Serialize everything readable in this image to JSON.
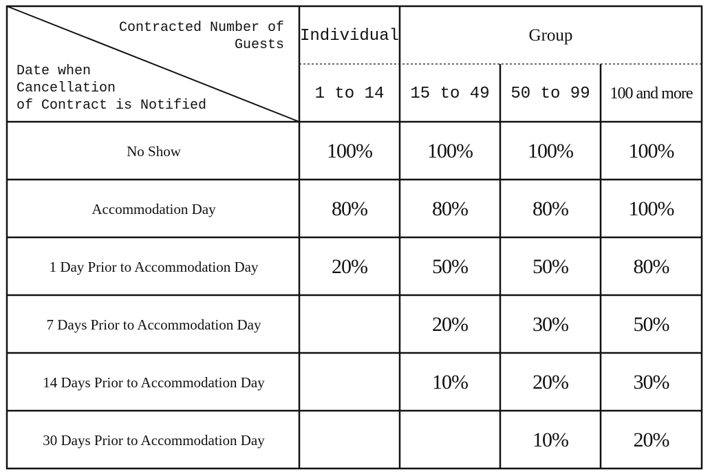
{
  "corner": {
    "column_heading_line1": "Contracted Number of",
    "column_heading_line2": "Guests",
    "row_heading_line1": "Date when",
    "row_heading_line2": "Cancellation",
    "row_heading_line3": "of Contract is Notified"
  },
  "headers": {
    "individual": "Individual",
    "group": "Group",
    "ranges": [
      "1 to 14",
      "15 to 49",
      "50 to 99",
      "100 and more"
    ]
  },
  "rows": [
    {
      "label": "No Show",
      "values": [
        "100%",
        "100%",
        "100%",
        "100%"
      ]
    },
    {
      "label": "Accommodation Day",
      "values": [
        "80%",
        "80%",
        "80%",
        "100%"
      ]
    },
    {
      "label": "1 Day Prior to Accommodation Day",
      "values": [
        "20%",
        "50%",
        "50%",
        "80%"
      ]
    },
    {
      "label": "7 Days Prior to Accommodation Day",
      "values": [
        "",
        "20%",
        "30%",
        "50%"
      ]
    },
    {
      "label": "14 Days Prior to Accommodation Day",
      "values": [
        "",
        "10%",
        "20%",
        "30%"
      ]
    },
    {
      "label": "30 Days Prior to Accommodation Day",
      "values": [
        "",
        "",
        "10%",
        "20%"
      ]
    }
  ]
}
